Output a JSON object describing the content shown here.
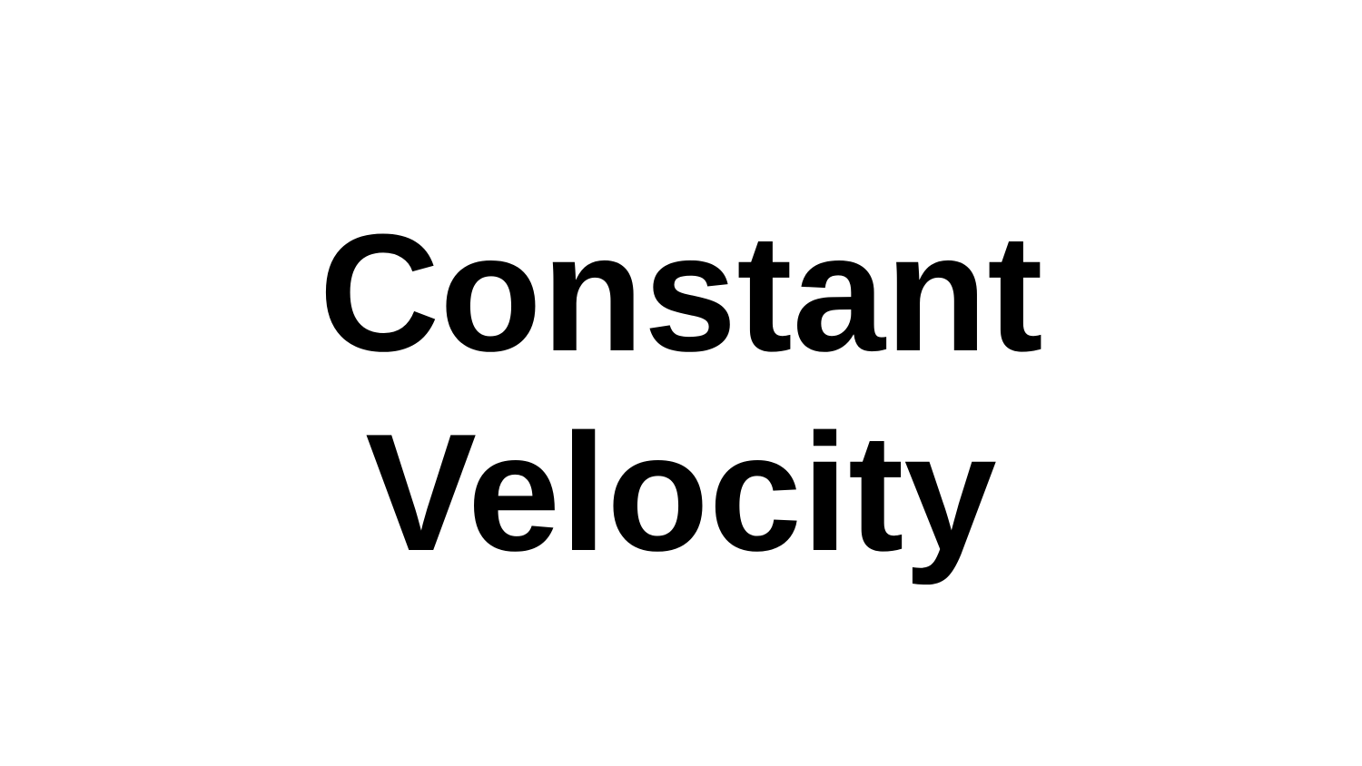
{
  "slide": {
    "title_line_1": "Constant",
    "title_line_2": "Velocity"
  }
}
